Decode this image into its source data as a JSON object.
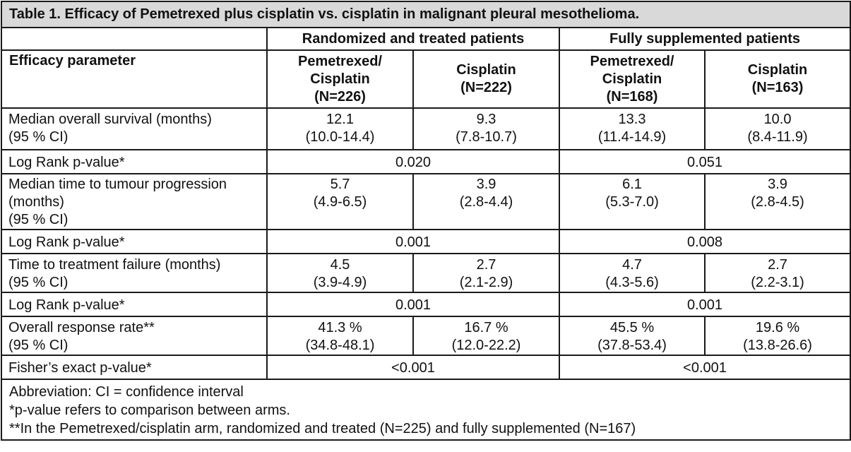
{
  "title": "Table 1. Efficacy of Pemetrexed plus cisplatin vs. cisplatin in malignant pleural mesothelioma.",
  "groups": [
    "Randomized and treated patients",
    "Fully supplemented patients"
  ],
  "param_header": "Efficacy parameter",
  "columns": [
    {
      "name": "Pemetrexed/",
      "name2": "Cisplatin",
      "n": "(N=226)"
    },
    {
      "name": "Cisplatin",
      "n": "(N=222)"
    },
    {
      "name": "Pemetrexed/",
      "name2": "Cisplatin",
      "n": "(N=168)"
    },
    {
      "name": "Cisplatin",
      "n": "(N=163)"
    }
  ],
  "rows": {
    "os": {
      "label": [
        "Median overall survival (months)",
        "(95 % CI)"
      ],
      "values": [
        [
          "12.1",
          "(10.0-14.4)"
        ],
        [
          "9.3",
          "(7.8-10.7)"
        ],
        [
          "13.3",
          "(11.4-14.9)"
        ],
        [
          "10.0",
          "(8.4-11.9)"
        ]
      ]
    },
    "os_p": {
      "label": "Log Rank p-value*",
      "values": [
        "0.020",
        "0.051"
      ]
    },
    "ttp": {
      "label": [
        "Median time to tumour progression",
        "(months)",
        "(95 % CI)"
      ],
      "values": [
        [
          "5.7",
          "(4.9-6.5)"
        ],
        [
          "3.9",
          "(2.8-4.4)"
        ],
        [
          "6.1",
          "(5.3-7.0)"
        ],
        [
          "3.9",
          "(2.8-4.5)"
        ]
      ]
    },
    "ttp_p": {
      "label": "Log Rank p-value*",
      "values": [
        "0.001",
        "0.008"
      ]
    },
    "ttf": {
      "label": [
        "Time to treatment failure (months)",
        "(95 % CI)"
      ],
      "values": [
        [
          "4.5",
          "(3.9-4.9)"
        ],
        [
          "2.7",
          "(2.1-2.9)"
        ],
        [
          "4.7",
          "(4.3-5.6)"
        ],
        [
          "2.7",
          "(2.2-3.1)"
        ]
      ]
    },
    "ttf_p": {
      "label": "Log Rank p-value*",
      "values": [
        "0.001",
        "0.001"
      ]
    },
    "orr": {
      "label": [
        "Overall response rate**",
        "(95 % CI)"
      ],
      "values": [
        [
          "41.3 %",
          "(34.8-48.1)"
        ],
        [
          "16.7 %",
          "(12.0-22.2)"
        ],
        [
          "45.5 %",
          "(37.8-53.4)"
        ],
        [
          "19.6 %",
          "(13.8-26.6)"
        ]
      ]
    },
    "orr_p": {
      "label": "Fisher’s exact p-value*",
      "values": [
        "<0.001",
        "<0.001"
      ]
    }
  },
  "footnotes": [
    "Abbreviation: CI = confidence interval",
    "*p-value refers to comparison between arms.",
    "**In the Pemetrexed/cisplatin arm, randomized and treated (N=225) and fully supplemented (N=167)"
  ]
}
